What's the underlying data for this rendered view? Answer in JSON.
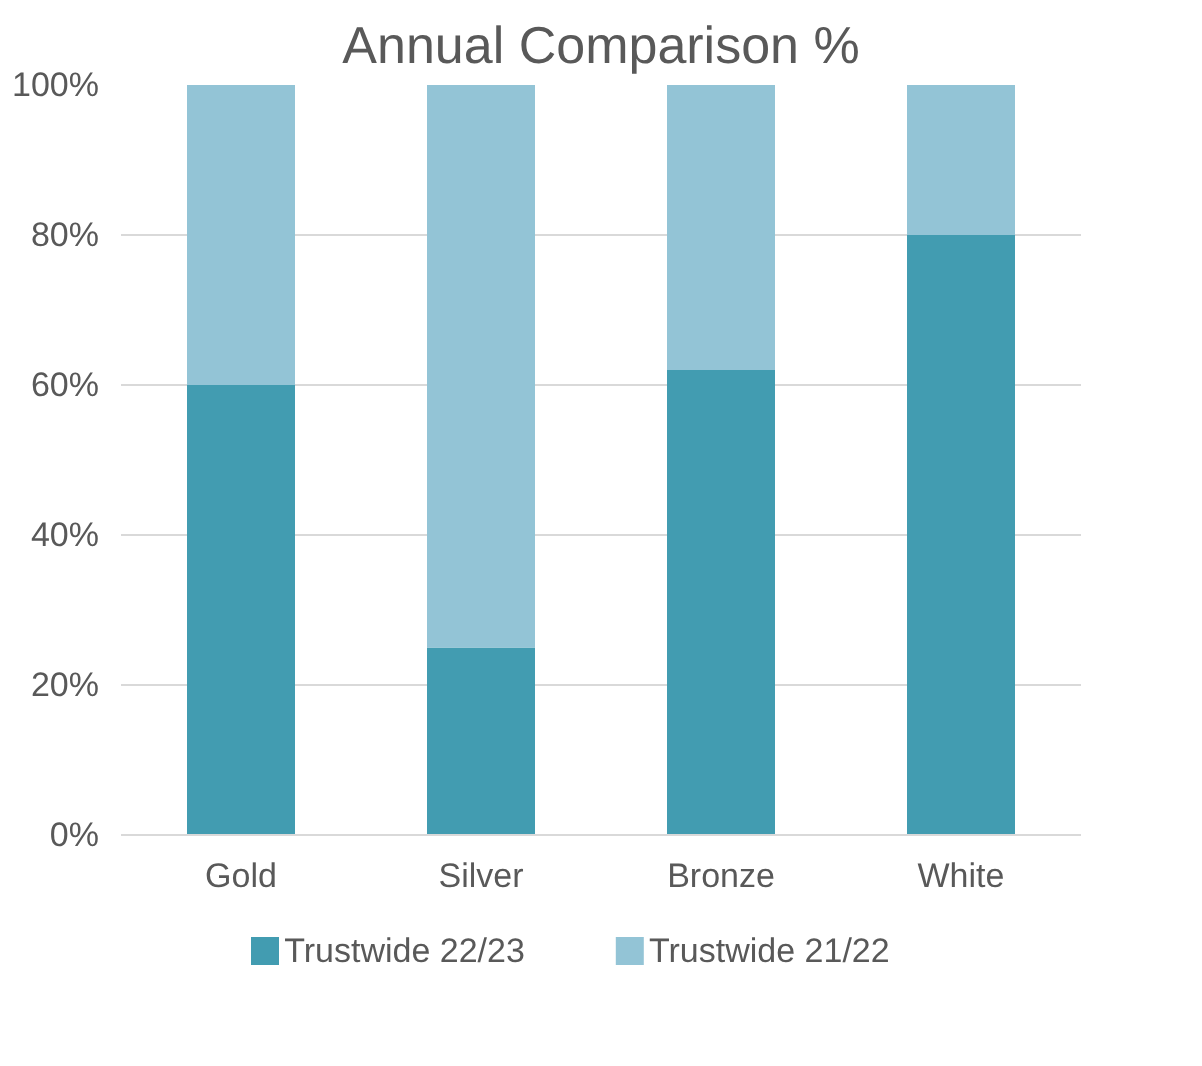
{
  "chart_data": {
    "type": "bar",
    "title": "Annual Comparison %",
    "categories": [
      "Gold",
      "Silver",
      "Bronze",
      "White"
    ],
    "stacked": true,
    "series": [
      {
        "name": "Trustwide 22/23",
        "color": "#429cb1",
        "values": [
          60,
          25,
          62,
          80
        ]
      },
      {
        "name": "Trustwide 21/22",
        "color": "#93c4d6",
        "values": [
          40,
          75,
          38,
          20
        ]
      }
    ],
    "ylim": [
      0,
      100
    ],
    "yticks": [
      {
        "value": 0,
        "label": "0%"
      },
      {
        "value": 20,
        "label": "20%"
      },
      {
        "value": 40,
        "label": "40%"
      },
      {
        "value": 60,
        "label": "60%"
      },
      {
        "value": 80,
        "label": "80%"
      },
      {
        "value": 100,
        "label": "100%"
      }
    ],
    "grid": "y",
    "legend": "bottom"
  }
}
